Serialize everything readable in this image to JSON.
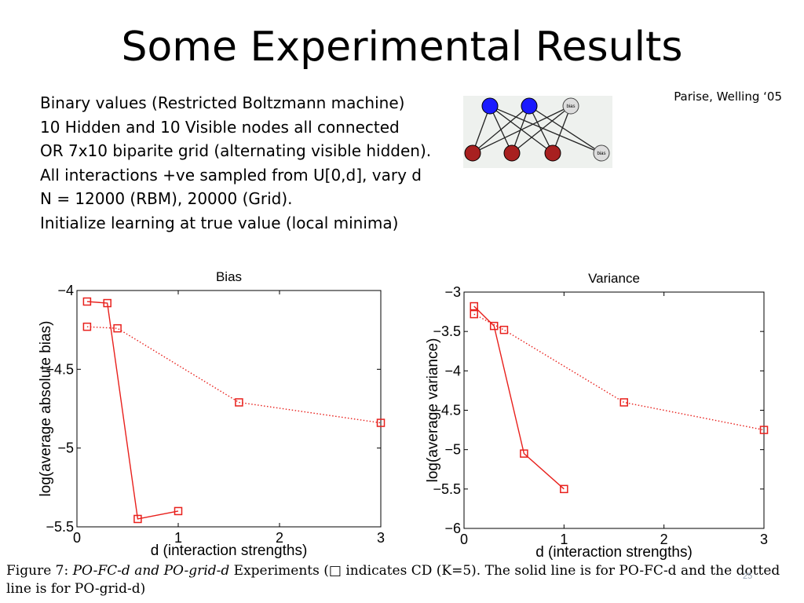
{
  "slide": {
    "title": "Some Experimental Results",
    "citation": "Parise, Welling ‘05",
    "bullets": [
      "Binary values (Restricted Boltzmann machine)",
      "10 Hidden and 10 Visible nodes all connected",
      "OR 7x10 biparite grid (alternating visible hidden).",
      "All interactions +ve sampled from U[0,d], vary d",
      "N = 12000 (RBM), 20000 (Grid).",
      "Initialize learning at true value (local minima)"
    ],
    "page_number": "25"
  },
  "network": {
    "bias_label": "bias",
    "hidden_color": "#1a1aff",
    "visible_color": "#a82020",
    "bias_color": "#dddddd"
  },
  "caption": {
    "figure_label": "Figure 7:",
    "italic_1": "PO-FC-d",
    "and_word": "and",
    "italic_2": "PO-grid-d",
    "rest": "Experiments (□ indicates CD (K=5). The solid line is for PO-FC-d and the dotted line is for PO-grid-d)"
  },
  "chart_data": [
    {
      "type": "line",
      "title": "Bias",
      "xlabel": "d (interaction strengths)",
      "ylabel": "log(average absolute bias)",
      "xlim": [
        0,
        3
      ],
      "ylim": [
        -5.5,
        -4
      ],
      "xticks": [
        "0",
        "1",
        "2",
        "3"
      ],
      "yticks": [
        "−4",
        "−4.5",
        "−5",
        "−5.5"
      ],
      "color": "#e8201c",
      "series": [
        {
          "style": "solid",
          "x": [
            0.1,
            0.3,
            0.6,
            1.0
          ],
          "y": [
            -4.07,
            -4.08,
            -5.45,
            -5.4
          ]
        },
        {
          "style": "dotted",
          "x": [
            0.1,
            0.4,
            1.6,
            3.0
          ],
          "y": [
            -4.23,
            -4.24,
            -4.71,
            -4.84
          ]
        }
      ]
    },
    {
      "type": "line",
      "title": "Variance",
      "xlabel": "d (interaction strengths)",
      "ylabel": "log(average variance)",
      "xlim": [
        0,
        3
      ],
      "ylim": [
        -6,
        -3
      ],
      "xticks": [
        "0",
        "1",
        "2",
        "3"
      ],
      "yticks": [
        "−3",
        "−3.5",
        "−4",
        "−4.5",
        "−5",
        "−5.5",
        "−6"
      ],
      "color": "#e8201c",
      "series": [
        {
          "style": "solid",
          "x": [
            0.1,
            0.3,
            0.6,
            1.0
          ],
          "y": [
            -3.18,
            -3.43,
            -5.05,
            -5.5
          ]
        },
        {
          "style": "dotted",
          "x": [
            0.1,
            0.4,
            1.6,
            3.0
          ],
          "y": [
            -3.28,
            -3.48,
            -4.4,
            -4.75
          ]
        }
      ]
    }
  ]
}
